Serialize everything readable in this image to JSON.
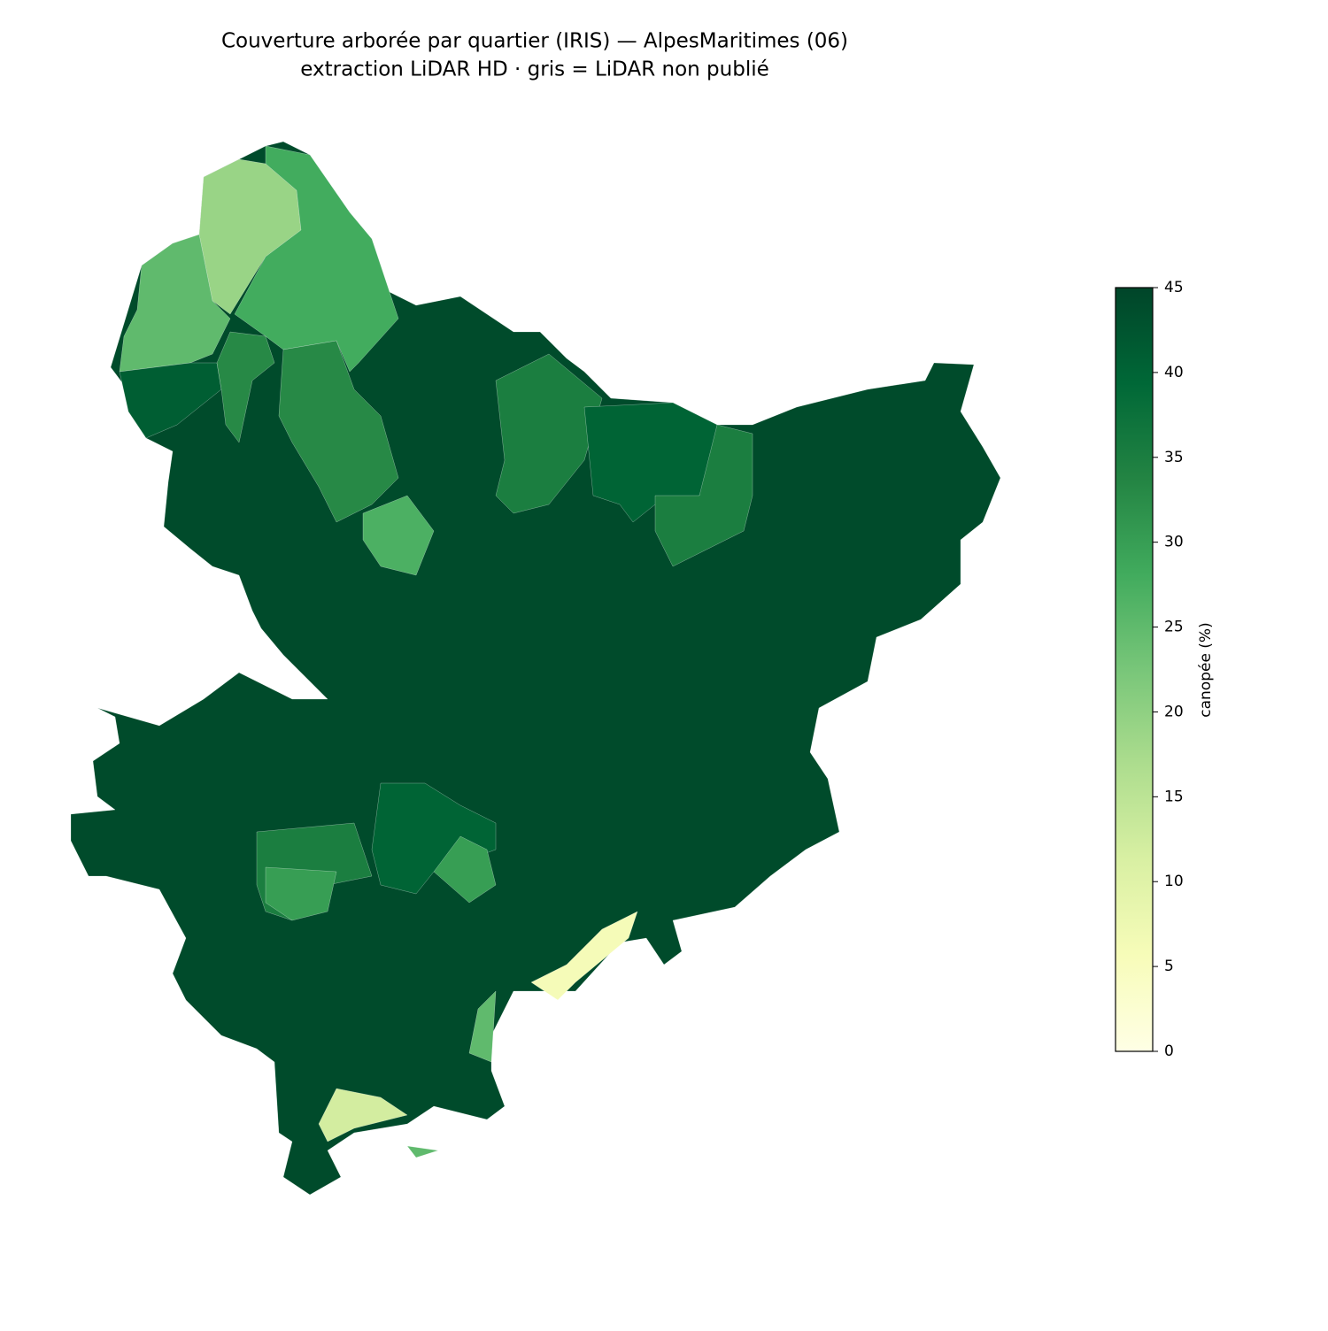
{
  "chart_data": {
    "type": "choropleth",
    "title": "Couverture arborée par quartier (IRIS) — AlpesMaritimes (06)",
    "subtitle": "extraction LiDAR HD · gris = LiDAR non publié",
    "colorbar_label": "canopée (%)",
    "clim": [
      0,
      45
    ],
    "cticks": [
      0,
      5,
      10,
      15,
      20,
      25,
      30,
      35,
      40,
      45
    ],
    "colormap": [
      "#ffffe5",
      "#f7fcb9",
      "#d9f0a3",
      "#addd8e",
      "#78c679",
      "#41ab5d",
      "#238443",
      "#006837",
      "#004529"
    ],
    "values": [
      44,
      19,
      28,
      25,
      41,
      33,
      33,
      27,
      35,
      40,
      35,
      35,
      30,
      40,
      30,
      6,
      12,
      25,
      25
    ]
  }
}
